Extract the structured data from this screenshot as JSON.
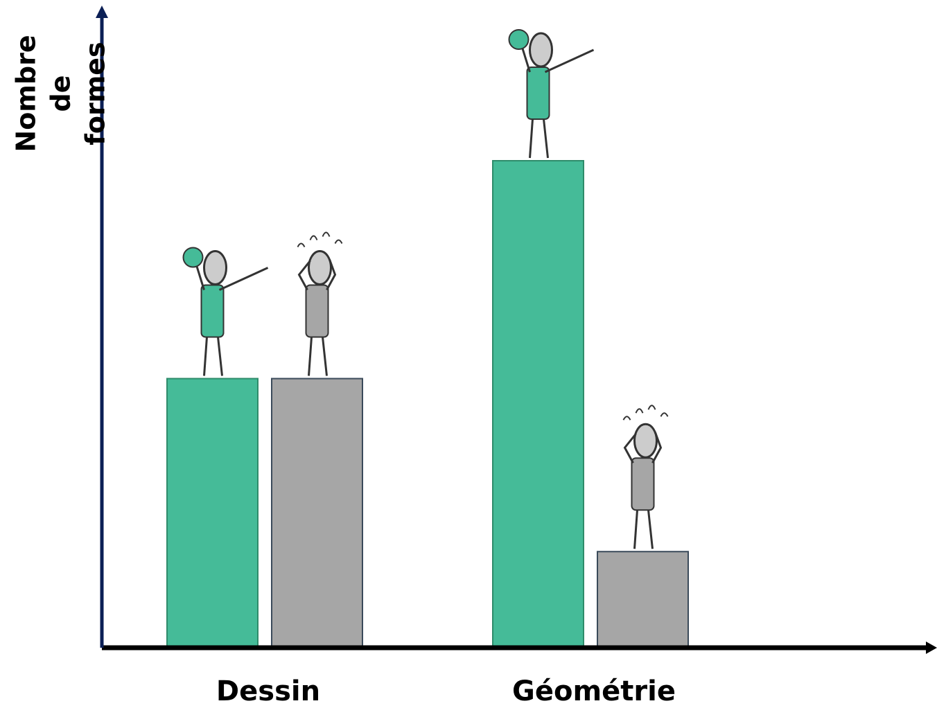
{
  "chart_data": {
    "type": "bar",
    "y_label": [
      "Nombre",
      "de",
      "formes"
    ],
    "categories": [
      "Dessin",
      "Géométrie"
    ],
    "series": [
      {
        "color": "#45bb98",
        "values": [
          42,
          76
        ]
      },
      {
        "color": "#a6a6a6",
        "values": [
          42,
          15
        ]
      }
    ],
    "ylim": [
      0,
      100
    ]
  }
}
